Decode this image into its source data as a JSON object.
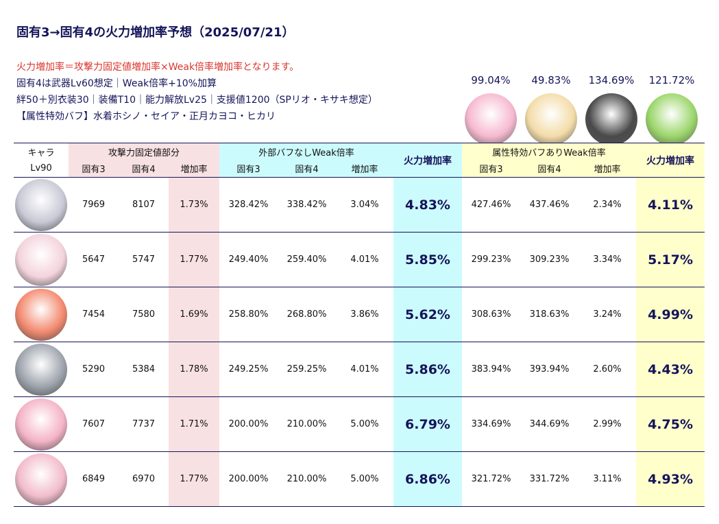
{
  "title": "固有3→固有4の火力増加率予想（2025/07/21）",
  "notes": [
    "火力増加率＝攻撃力固定値増加率×Weak倍率増加率となります。",
    "固有4は武器Lv60想定｜Weak倍率+10%加算",
    "絆50＋別衣装30｜装備T10｜能力解放Lv25｜支援値1200（SPリオ・キサキ想定）",
    "【属性特効バフ】水着ホシノ・セイア・正月カヨコ・ヒカリ"
  ],
  "buffs": [
    {
      "pct": "99.04%",
      "color": "#f6b9cf"
    },
    {
      "pct": "49.83%",
      "color": "#f3dca8"
    },
    {
      "pct": "134.69%",
      "color": "#4a4a4a"
    },
    {
      "pct": "121.72%",
      "color": "#9bd66b"
    }
  ],
  "header": {
    "chara": "キャラ",
    "lv": "Lv90",
    "atk": "攻撃力固定値部分",
    "ext": "外部バフなしWeak倍率",
    "fire": "火力増加率",
    "attr": "属性特効バフありWeak倍率",
    "g3": "固有3",
    "g4": "固有4",
    "inc": "増加率"
  },
  "rows": [
    {
      "color": "#c9c9d6",
      "a3": "7969",
      "a4": "8107",
      "ai": "1.73%",
      "e3": "328.42%",
      "e4": "338.42%",
      "ei": "3.04%",
      "f1": "4.83%",
      "t3": "427.46%",
      "t4": "437.46%",
      "ti": "2.34%",
      "f2": "4.11%"
    },
    {
      "color": "#f3d3dc",
      "a3": "5647",
      "a4": "5747",
      "ai": "1.77%",
      "e3": "249.40%",
      "e4": "259.40%",
      "ei": "4.01%",
      "f1": "5.85%",
      "t3": "299.23%",
      "t4": "309.23%",
      "ti": "3.34%",
      "f2": "5.17%"
    },
    {
      "color": "#f38a70",
      "a3": "7454",
      "a4": "7580",
      "ai": "1.69%",
      "e3": "258.80%",
      "e4": "268.80%",
      "ei": "3.86%",
      "f1": "5.62%",
      "t3": "308.63%",
      "t4": "318.63%",
      "ti": "3.24%",
      "f2": "4.99%"
    },
    {
      "color": "#9ea4ad",
      "a3": "5290",
      "a4": "5384",
      "ai": "1.78%",
      "e3": "249.25%",
      "e4": "259.25%",
      "ei": "4.01%",
      "f1": "5.86%",
      "t3": "383.94%",
      "t4": "393.94%",
      "ti": "2.60%",
      "f2": "4.43%"
    },
    {
      "color": "#f4b3c6",
      "a3": "7607",
      "a4": "7737",
      "ai": "1.71%",
      "e3": "200.00%",
      "e4": "210.00%",
      "ei": "5.00%",
      "f1": "6.79%",
      "t3": "334.69%",
      "t4": "344.69%",
      "ti": "2.99%",
      "f2": "4.75%"
    },
    {
      "color": "#f2bccb",
      "a3": "6849",
      "a4": "6970",
      "ai": "1.77%",
      "e3": "200.00%",
      "e4": "210.00%",
      "ei": "5.00%",
      "f1": "6.86%",
      "t3": "321.72%",
      "t4": "331.72%",
      "ti": "3.11%",
      "f2": "4.93%"
    }
  ]
}
